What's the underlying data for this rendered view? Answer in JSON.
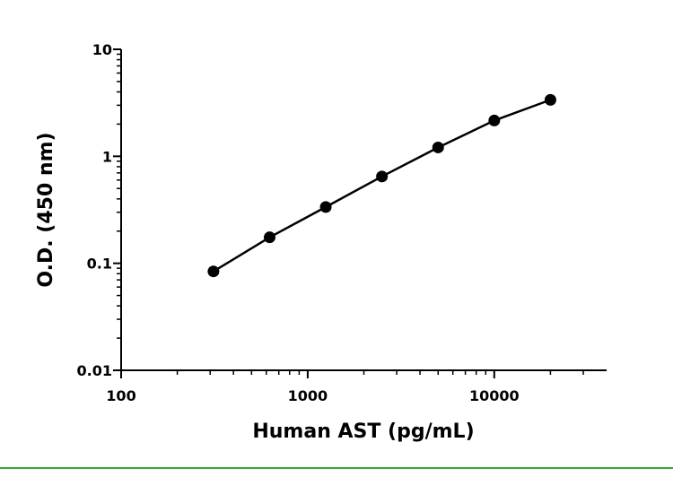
{
  "chart_data": {
    "type": "scatter",
    "x_label": "Human AST (pg/mL)",
    "y_label": "O.D. (450 nm)",
    "x_scale": "log",
    "y_scale": "log",
    "xlim": [
      100,
      40000
    ],
    "ylim": [
      0.01,
      10
    ],
    "xticks": [
      100,
      1000,
      10000
    ],
    "yticks": [
      0.01,
      0.1,
      1,
      10
    ],
    "series": [
      {
        "color": "#000000",
        "line": true,
        "x": [
          312.5,
          625,
          1250,
          2500,
          5000,
          10000,
          20000
        ],
        "values": [
          0.084,
          0.175,
          0.336,
          0.648,
          1.21,
          2.16,
          3.37
        ]
      }
    ]
  }
}
